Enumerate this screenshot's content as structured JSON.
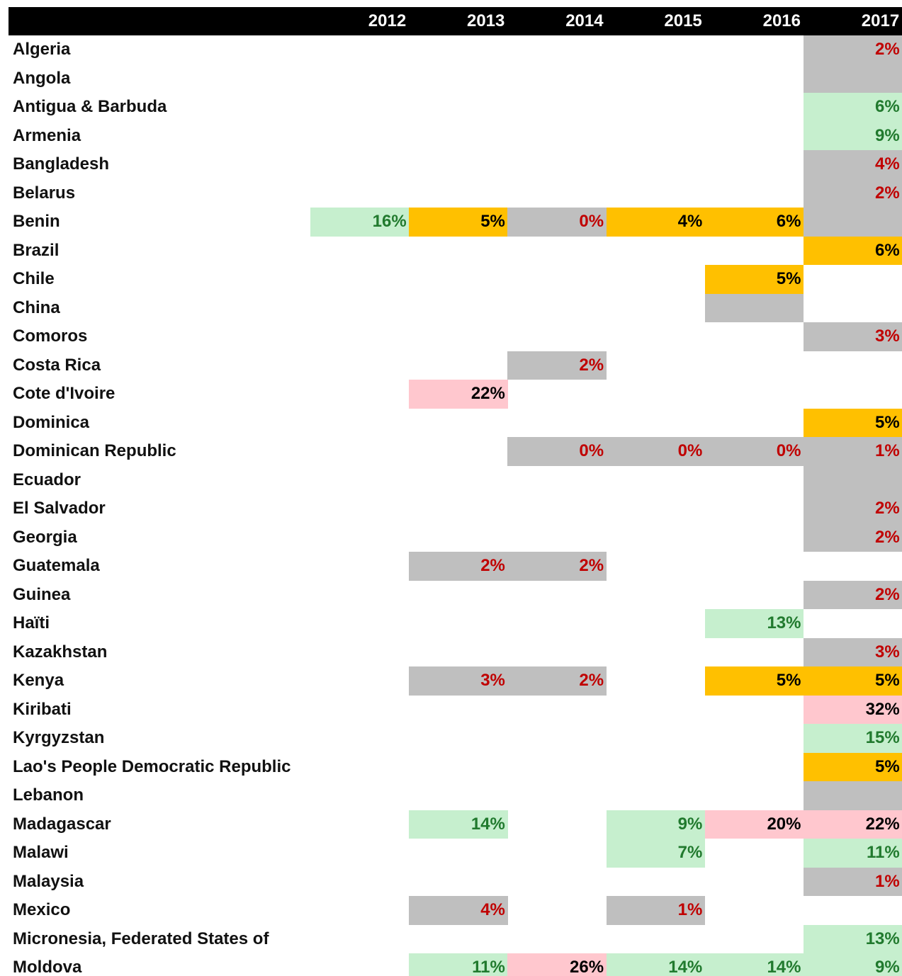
{
  "table": {
    "columns": [
      "2012",
      "2013",
      "2014",
      "2015",
      "2016",
      "2017"
    ],
    "rows": [
      {
        "name": "Algeria",
        "cells": [
          null,
          null,
          null,
          null,
          null,
          {
            "text": "2%",
            "fill": "#bfbfbf",
            "color": "#c00000"
          }
        ]
      },
      {
        "name": "Angola",
        "cells": [
          null,
          null,
          null,
          null,
          null,
          {
            "fill": "#bfbfbf"
          }
        ]
      },
      {
        "name": "Antigua & Barbuda",
        "cells": [
          null,
          null,
          null,
          null,
          null,
          {
            "text": "6%",
            "fill": "#c6efce",
            "color": "#217a2e"
          }
        ]
      },
      {
        "name": "Armenia",
        "cells": [
          null,
          null,
          null,
          null,
          null,
          {
            "text": "9%",
            "fill": "#c6efce",
            "color": "#217a2e"
          }
        ]
      },
      {
        "name": "Bangladesh",
        "cells": [
          null,
          null,
          null,
          null,
          null,
          {
            "text": "4%",
            "fill": "#bfbfbf",
            "color": "#c00000"
          }
        ]
      },
      {
        "name": "Belarus",
        "cells": [
          null,
          null,
          null,
          null,
          null,
          {
            "text": "2%",
            "fill": "#bfbfbf",
            "color": "#c00000"
          }
        ]
      },
      {
        "name": "Benin",
        "cells": [
          {
            "text": "16%",
            "fill": "#c6efce",
            "color": "#217a2e"
          },
          {
            "text": "5%",
            "fill": "#ffc000",
            "color": "#000000"
          },
          {
            "text": "0%",
            "fill": "#bfbfbf",
            "color": "#c00000"
          },
          {
            "text": "4%",
            "fill": "#ffc000",
            "color": "#000000"
          },
          {
            "text": "6%",
            "fill": "#ffc000",
            "color": "#000000"
          },
          {
            "fill": "#bfbfbf"
          }
        ]
      },
      {
        "name": "Brazil",
        "cells": [
          null,
          null,
          null,
          null,
          null,
          {
            "text": "6%",
            "fill": "#ffc000",
            "color": "#000000"
          }
        ]
      },
      {
        "name": "Chile",
        "cells": [
          null,
          null,
          null,
          null,
          {
            "text": "5%",
            "fill": "#ffc000",
            "color": "#000000"
          },
          null
        ]
      },
      {
        "name": "China",
        "cells": [
          null,
          null,
          null,
          null,
          {
            "fill": "#bfbfbf"
          },
          null
        ]
      },
      {
        "name": "Comoros",
        "cells": [
          null,
          null,
          null,
          null,
          null,
          {
            "text": "3%",
            "fill": "#bfbfbf",
            "color": "#c00000"
          }
        ]
      },
      {
        "name": "Costa Rica",
        "cells": [
          null,
          null,
          {
            "text": "2%",
            "fill": "#bfbfbf",
            "color": "#c00000"
          },
          null,
          null,
          null
        ]
      },
      {
        "name": "Cote d'Ivoire",
        "cells": [
          null,
          {
            "text": "22%",
            "fill": "#ffc7ce",
            "color": "#000000"
          },
          null,
          null,
          null,
          null
        ]
      },
      {
        "name": "Dominica",
        "cells": [
          null,
          null,
          null,
          null,
          null,
          {
            "text": "5%",
            "fill": "#ffc000",
            "color": "#000000"
          }
        ]
      },
      {
        "name": "Dominican Republic",
        "cells": [
          null,
          null,
          {
            "text": "0%",
            "fill": "#bfbfbf",
            "color": "#c00000"
          },
          {
            "text": "0%",
            "fill": "#bfbfbf",
            "color": "#c00000"
          },
          {
            "text": "0%",
            "fill": "#bfbfbf",
            "color": "#c00000"
          },
          {
            "text": "1%",
            "fill": "#bfbfbf",
            "color": "#c00000"
          }
        ]
      },
      {
        "name": "Ecuador",
        "cells": [
          null,
          null,
          null,
          null,
          null,
          {
            "fill": "#bfbfbf"
          }
        ]
      },
      {
        "name": "El Salvador",
        "cells": [
          null,
          null,
          null,
          null,
          null,
          {
            "text": "2%",
            "fill": "#bfbfbf",
            "color": "#c00000"
          }
        ]
      },
      {
        "name": "Georgia",
        "cells": [
          null,
          null,
          null,
          null,
          null,
          {
            "text": "2%",
            "fill": "#bfbfbf",
            "color": "#c00000"
          }
        ]
      },
      {
        "name": "Guatemala",
        "cells": [
          null,
          {
            "text": "2%",
            "fill": "#bfbfbf",
            "color": "#c00000"
          },
          {
            "text": "2%",
            "fill": "#bfbfbf",
            "color": "#c00000"
          },
          null,
          null,
          null
        ]
      },
      {
        "name": "Guinea",
        "cells": [
          null,
          null,
          null,
          null,
          null,
          {
            "text": "2%",
            "fill": "#bfbfbf",
            "color": "#c00000"
          }
        ]
      },
      {
        "name": "Haïti",
        "cells": [
          null,
          null,
          null,
          null,
          {
            "text": "13%",
            "fill": "#c6efce",
            "color": "#217a2e"
          },
          null
        ]
      },
      {
        "name": "Kazakhstan",
        "cells": [
          null,
          null,
          null,
          null,
          null,
          {
            "text": "3%",
            "fill": "#bfbfbf",
            "color": "#c00000"
          }
        ]
      },
      {
        "name": "Kenya",
        "cells": [
          null,
          {
            "text": "3%",
            "fill": "#bfbfbf",
            "color": "#c00000"
          },
          {
            "text": "2%",
            "fill": "#bfbfbf",
            "color": "#c00000"
          },
          null,
          {
            "text": "5%",
            "fill": "#ffc000",
            "color": "#000000"
          },
          {
            "text": "5%",
            "fill": "#ffc000",
            "color": "#000000"
          }
        ]
      },
      {
        "name": "Kiribati",
        "cells": [
          null,
          null,
          null,
          null,
          null,
          {
            "text": "32%",
            "fill": "#ffc7ce",
            "color": "#000000"
          }
        ]
      },
      {
        "name": "Kyrgyzstan",
        "cells": [
          null,
          null,
          null,
          null,
          null,
          {
            "text": "15%",
            "fill": "#c6efce",
            "color": "#217a2e"
          }
        ]
      },
      {
        "name": "Lao's People Democratic Republic",
        "cells": [
          null,
          null,
          null,
          null,
          null,
          {
            "text": "5%",
            "fill": "#ffc000",
            "color": "#000000"
          }
        ]
      },
      {
        "name": "Lebanon",
        "cells": [
          null,
          null,
          null,
          null,
          null,
          {
            "fill": "#bfbfbf"
          }
        ]
      },
      {
        "name": "Madagascar",
        "cells": [
          null,
          {
            "text": "14%",
            "fill": "#c6efce",
            "color": "#217a2e"
          },
          null,
          {
            "text": "9%",
            "fill": "#c6efce",
            "color": "#217a2e"
          },
          {
            "text": "20%",
            "fill": "#ffc7ce",
            "color": "#000000"
          },
          {
            "text": "22%",
            "fill": "#ffc7ce",
            "color": "#000000"
          }
        ]
      },
      {
        "name": "Malawi",
        "cells": [
          null,
          null,
          null,
          {
            "text": "7%",
            "fill": "#c6efce",
            "color": "#217a2e"
          },
          null,
          {
            "text": "11%",
            "fill": "#c6efce",
            "color": "#217a2e"
          }
        ]
      },
      {
        "name": "Malaysia",
        "cells": [
          null,
          null,
          null,
          null,
          null,
          {
            "text": "1%",
            "fill": "#bfbfbf",
            "color": "#c00000"
          }
        ]
      },
      {
        "name": "Mexico",
        "cells": [
          null,
          {
            "text": "4%",
            "fill": "#bfbfbf",
            "color": "#c00000"
          },
          null,
          {
            "text": "1%",
            "fill": "#bfbfbf",
            "color": "#c00000"
          },
          null,
          null
        ]
      },
      {
        "name": "Micronesia, Federated States of",
        "cells": [
          null,
          null,
          null,
          null,
          null,
          {
            "text": "13%",
            "fill": "#c6efce",
            "color": "#217a2e"
          }
        ]
      },
      {
        "name": "Moldova",
        "cells": [
          null,
          {
            "text": "11%",
            "fill": "#c6efce",
            "color": "#217a2e"
          },
          {
            "text": "26%",
            "fill": "#ffc7ce",
            "color": "#000000"
          },
          {
            "text": "14%",
            "fill": "#c6efce",
            "color": "#217a2e"
          },
          {
            "text": "14%",
            "fill": "#c6efce",
            "color": "#217a2e"
          },
          {
            "text": "9%",
            "fill": "#c6efce",
            "color": "#217a2e"
          }
        ]
      }
    ]
  }
}
